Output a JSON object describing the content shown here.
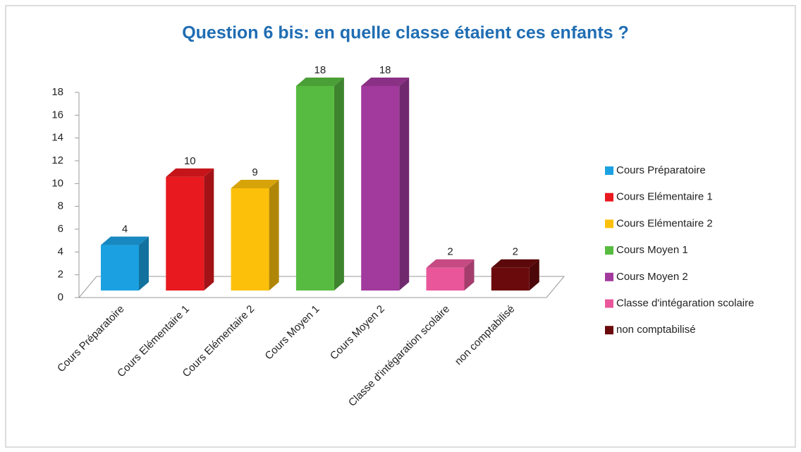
{
  "chart_data": {
    "type": "bar3d",
    "title": "Question 6 bis: en quelle classe étaient ces enfants ?",
    "categories": [
      "Cours Préparatoire",
      "Cours Elémentaire 1",
      "Cours Elémentaire 2",
      "Cours Moyen 1",
      "Cours Moyen 2",
      "Classe d'intégaration scolaire",
      "non comptabilisé"
    ],
    "values": [
      4,
      10,
      9,
      18,
      18,
      2,
      2
    ],
    "colors": [
      "#1ba1e2",
      "#e8191f",
      "#fcc00a",
      "#58bb41",
      "#a23a9d",
      "#e9579a",
      "#6b0a0d"
    ],
    "ylim": [
      0,
      18
    ],
    "yticks": [
      0,
      2,
      4,
      6,
      8,
      10,
      12,
      14,
      16,
      18
    ],
    "data_labels": true,
    "legend": "right"
  }
}
